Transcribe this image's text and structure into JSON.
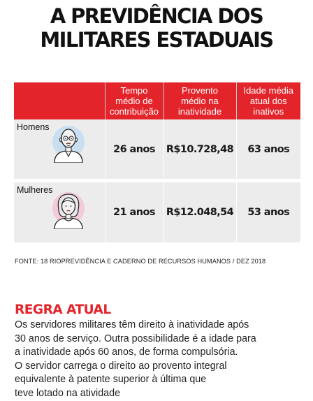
{
  "title": {
    "line1": "A PREVIDÊNCIA DOS",
    "line2": "MILITARES ESTADUAIS"
  },
  "chart_data": {
    "type": "table",
    "columns": [
      "",
      "Tempo médio de contribuição",
      "Provento médio na inatividade",
      "Idade média atual dos inativos"
    ],
    "column_lines": [
      [
        "Tempo",
        "médio de",
        "contribuição"
      ],
      [
        "Provento",
        "médio na",
        "inatividade"
      ],
      [
        "Idade média",
        "atual dos",
        "inativos"
      ]
    ],
    "rows": [
      {
        "group": "Homens",
        "avatar": "man-avatar-icon",
        "values": [
          "26 anos",
          "R$10.728,48",
          "63 anos"
        ]
      },
      {
        "group": "Mulheres",
        "avatar": "woman-avatar-icon",
        "values": [
          "21 anos",
          "R$12.048,54",
          "53 anos"
        ]
      }
    ]
  },
  "source": "FONTE: 18 RIOPREVIDÊNCIA E CADERNO DE RECURSOS HUMANOS / DEZ 2018",
  "rule": {
    "title": "REGRA ATUAL",
    "lines": [
      "Os servidores militares têm direito à inatividade após",
      "30 anos de serviço. Outra possibilidade é a idade para",
      "a inatividade após 60 anos, de forma compulsória.",
      "O servidor carrega o direito ao provento integral",
      "equivalente à patente superior à última que",
      "teve lotado na atividade"
    ]
  },
  "colors": {
    "accent": "#e3252b",
    "table_bg": "#ececec",
    "man_circle": "#c9dff1",
    "woman_circle": "#f3c9dc"
  }
}
